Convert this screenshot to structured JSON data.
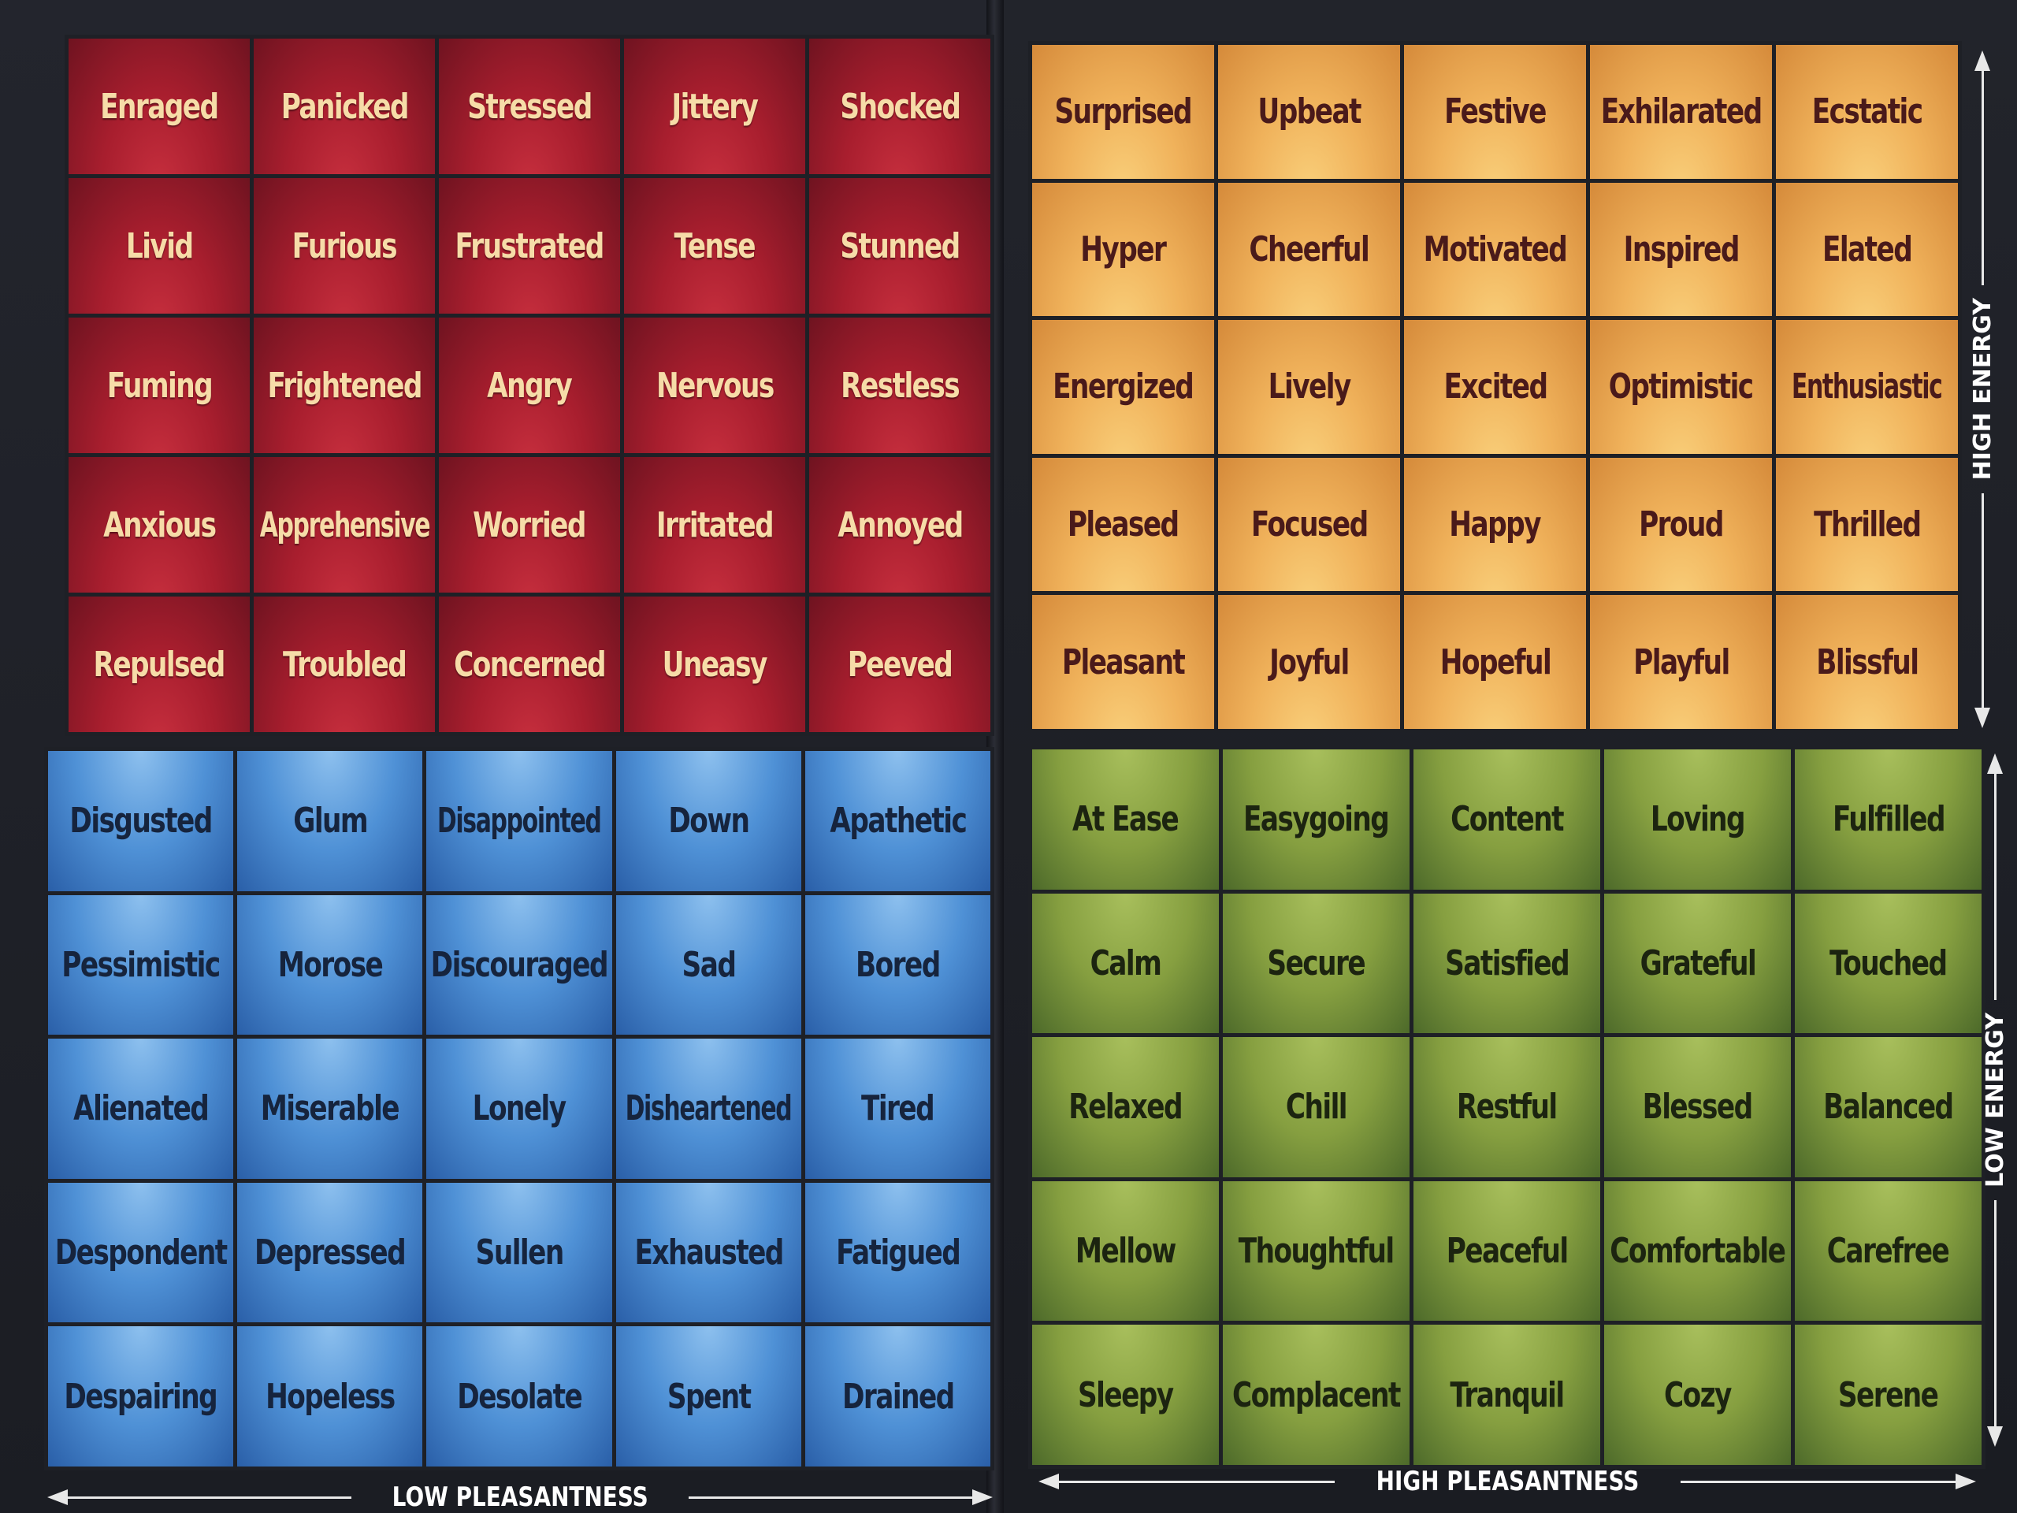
{
  "quadrants": {
    "red": {
      "color": "#a81e2e",
      "rows": [
        [
          "Enraged",
          "Panicked",
          "Stressed",
          "Jittery",
          "Shocked"
        ],
        [
          "Livid",
          "Furious",
          "Frustrated",
          "Tense",
          "Stunned"
        ],
        [
          "Fuming",
          "Frightened",
          "Angry",
          "Nervous",
          "Restless"
        ],
        [
          "Anxious",
          "Apprehensive",
          "Worried",
          "Irritated",
          "Annoyed"
        ],
        [
          "Repulsed",
          "Troubled",
          "Concerned",
          "Uneasy",
          "Peeved"
        ]
      ]
    },
    "yellow": {
      "color": "#f0b25b",
      "rows": [
        [
          "Surprised",
          "Upbeat",
          "Festive",
          "Exhilarated",
          "Ecstatic"
        ],
        [
          "Hyper",
          "Cheerful",
          "Motivated",
          "Inspired",
          "Elated"
        ],
        [
          "Energized",
          "Lively",
          "Excited",
          "Optimistic",
          "Enthusiastic"
        ],
        [
          "Pleased",
          "Focused",
          "Happy",
          "Proud",
          "Thrilled"
        ],
        [
          "Pleasant",
          "Joyful",
          "Hopeful",
          "Playful",
          "Blissful"
        ]
      ]
    },
    "blue": {
      "color": "#4f91d6",
      "rows": [
        [
          "Disgusted",
          "Glum",
          "Disappointed",
          "Down",
          "Apathetic"
        ],
        [
          "Pessimistic",
          "Morose",
          "Discouraged",
          "Sad",
          "Bored"
        ],
        [
          "Alienated",
          "Miserable",
          "Lonely",
          "Disheartened",
          "Tired"
        ],
        [
          "Despondent",
          "Depressed",
          "Sullen",
          "Exhausted",
          "Fatigued"
        ],
        [
          "Despairing",
          "Hopeless",
          "Desolate",
          "Spent",
          "Drained"
        ]
      ]
    },
    "green": {
      "color": "#869f40",
      "rows": [
        [
          "At Ease",
          "Easygoing",
          "Content",
          "Loving",
          "Fulfilled"
        ],
        [
          "Calm",
          "Secure",
          "Satisfied",
          "Grateful",
          "Touched"
        ],
        [
          "Relaxed",
          "Chill",
          "Restful",
          "Blessed",
          "Balanced"
        ],
        [
          "Mellow",
          "Thoughtful",
          "Peaceful",
          "Comfortable",
          "Carefree"
        ],
        [
          "Sleepy",
          "Complacent",
          "Tranquil",
          "Cozy",
          "Serene"
        ]
      ]
    }
  },
  "axes": {
    "low_pleasantness": "LOW PLEASANTNESS",
    "high_pleasantness": "HIGH PLEASANTNESS",
    "high_energy": "HIGH ENERGY",
    "low_energy": "LOW ENERGY"
  }
}
